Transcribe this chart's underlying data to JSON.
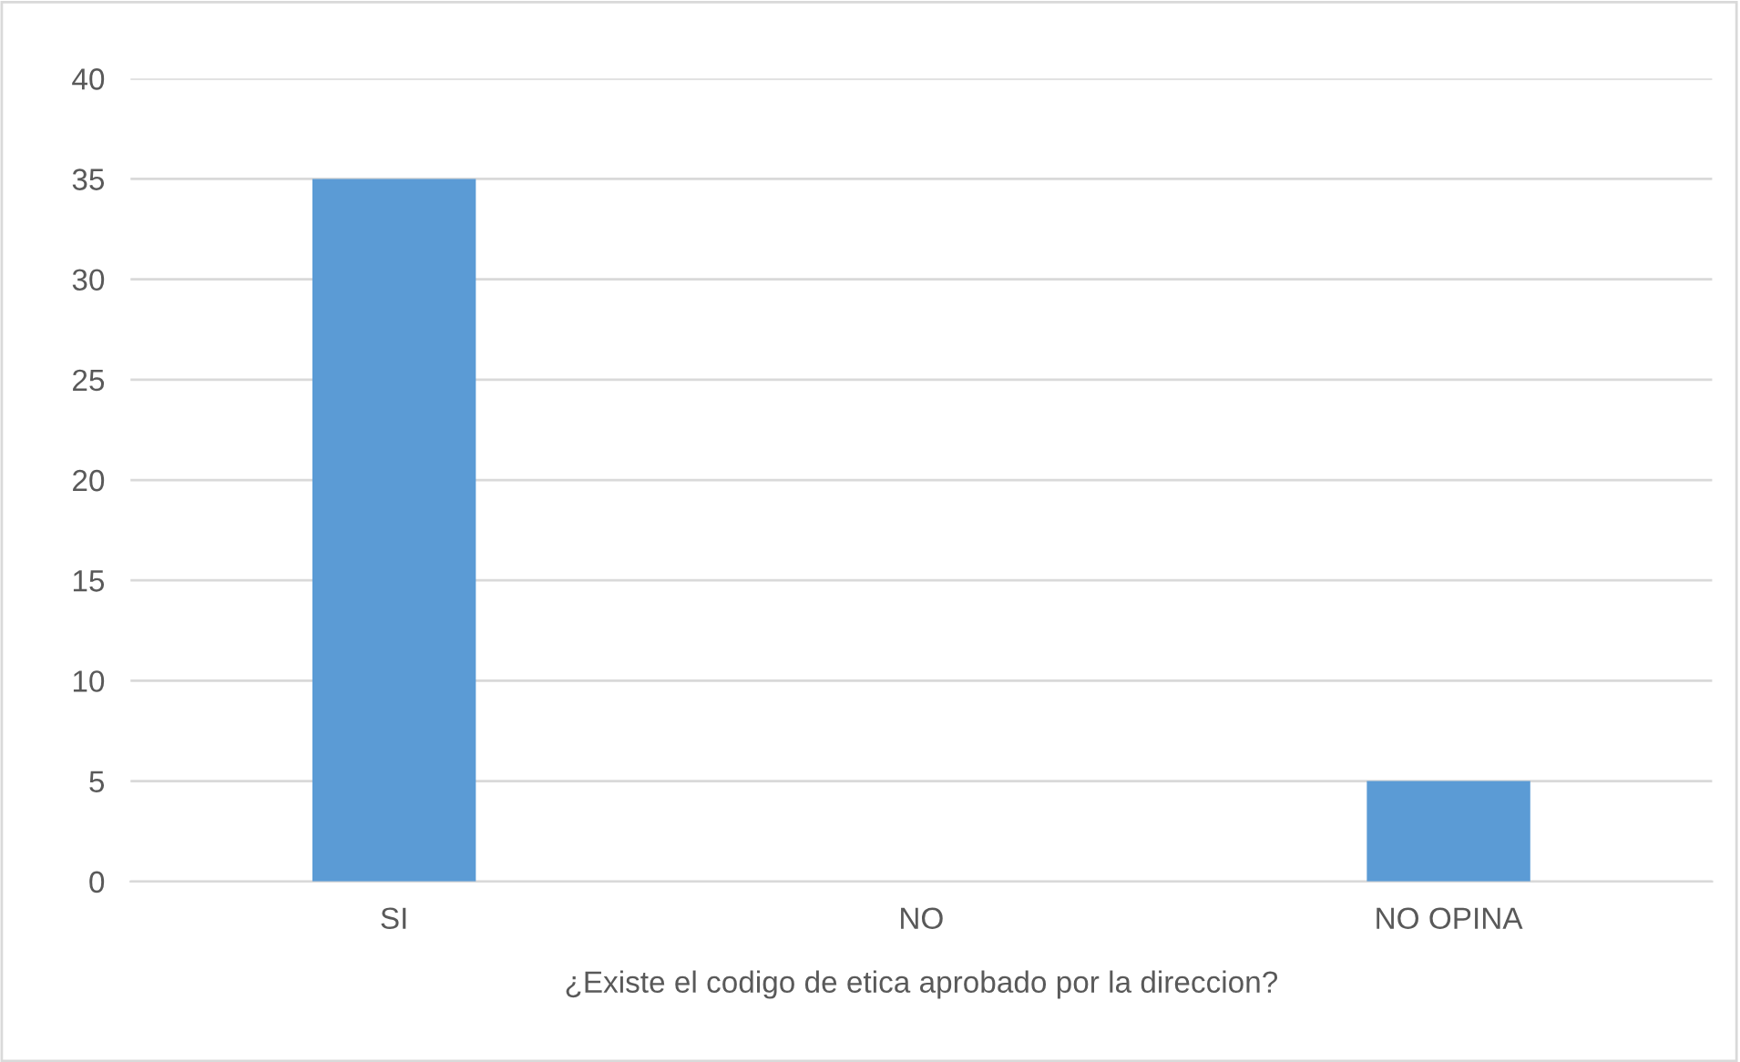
{
  "chart_data": {
    "type": "bar",
    "xlabel": "¿Existe el codigo de etica aprobado por la direccion?",
    "categories": [
      "SI",
      "NO",
      "NO OPINA"
    ],
    "values": [
      35,
      0,
      5
    ],
    "color": "#5b9bd5",
    "ylim": [
      0,
      40
    ],
    "yticks": [
      0,
      5,
      10,
      15,
      20,
      25,
      30,
      35,
      40
    ],
    "grid": "y"
  }
}
